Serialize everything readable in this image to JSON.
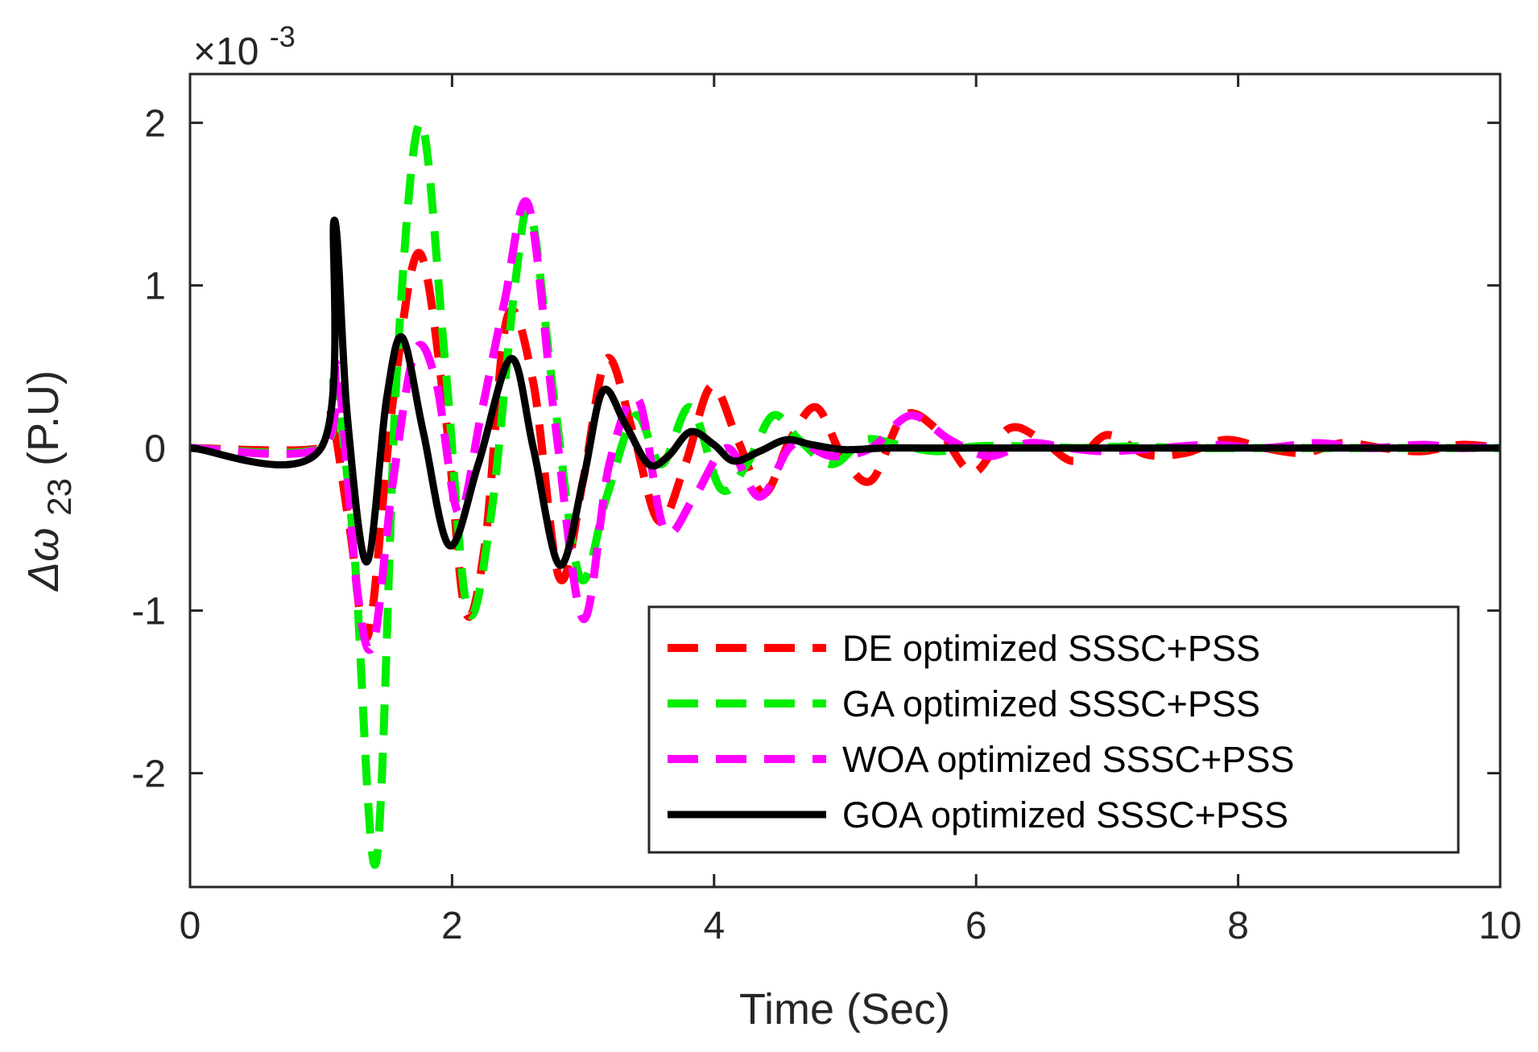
{
  "chart_data": {
    "type": "line",
    "xlabel": "Time (Sec)",
    "ylabel": {
      "main": "Δω",
      "subscript": "23",
      "unit": " (P.U)"
    },
    "y_exponent": {
      "base": "×10",
      "exponent": "-3"
    },
    "xlim": [
      0,
      10
    ],
    "ylim": [
      -2.7,
      2.3
    ],
    "xticks": [
      0,
      2,
      4,
      6,
      8,
      10
    ],
    "yticks": [
      -2,
      -1,
      0,
      1,
      2
    ],
    "grid": false,
    "legend_position": "bottom-right",
    "series": [
      {
        "name": "DE optimized SSSC+PSS",
        "color": "#ff0000",
        "style": "dashed",
        "x": [
          0,
          1.0,
          1.08,
          1.22,
          1.36,
          1.55,
          1.75,
          1.95,
          2.1,
          2.25,
          2.42,
          2.62,
          2.82,
          3.0,
          3.18,
          3.38,
          3.58,
          3.78,
          3.98,
          4.18,
          4.38,
          4.58,
          4.78,
          4.98,
          5.2,
          5.45,
          5.72,
          5.98,
          6.25,
          6.5,
          6.75,
          7.0,
          7.3,
          7.6,
          7.9,
          8.2,
          8.5,
          8.8,
          9.1,
          9.4,
          9.7,
          10.0
        ],
        "values": [
          0,
          0,
          0.2,
          -0.5,
          -1.15,
          0.3,
          1.2,
          0.2,
          -1.0,
          -0.6,
          0.8,
          0.4,
          -0.8,
          -0.2,
          0.55,
          0.1,
          -0.45,
          -0.1,
          0.38,
          0.05,
          -0.28,
          0.05,
          0.25,
          -0.05,
          -0.2,
          0.2,
          0.1,
          -0.15,
          0.12,
          0.05,
          -0.08,
          0.08,
          -0.04,
          -0.03,
          0.05,
          0.0,
          -0.03,
          0.03,
          0.0,
          -0.02,
          0.02,
          0.0
        ]
      },
      {
        "name": "GA optimized SSSC+PSS",
        "color": "#00ee00",
        "style": "dashed",
        "x": [
          0,
          1.0,
          1.1,
          1.25,
          1.42,
          1.58,
          1.76,
          1.95,
          2.12,
          2.3,
          2.48,
          2.6,
          2.78,
          2.98,
          3.18,
          3.4,
          3.6,
          3.82,
          4.05,
          4.25,
          4.45,
          4.65,
          4.9,
          5.15,
          5.4,
          5.7,
          6.0,
          6.4,
          6.8,
          7.2,
          7.6,
          8.0,
          8.5,
          9.0,
          9.5,
          10.0
        ],
        "values": [
          0,
          0,
          0.4,
          -0.6,
          -2.55,
          0.5,
          2.0,
          0.5,
          -1.0,
          -0.4,
          1.0,
          1.45,
          0.3,
          -0.8,
          -0.3,
          0.2,
          -0.1,
          0.25,
          -0.25,
          -0.1,
          0.2,
          0.05,
          -0.1,
          0.05,
          0.02,
          -0.02,
          0.01,
          0.01,
          0.0,
          0.01,
          0.0,
          0.0,
          0.0,
          0.0,
          0.0,
          0.0
        ]
      },
      {
        "name": "WOA optimized SSSC+PSS",
        "color": "#ff00ff",
        "style": "dashed",
        "x": [
          0,
          1.0,
          1.12,
          1.28,
          1.4,
          1.55,
          1.72,
          1.88,
          2.05,
          2.22,
          2.4,
          2.58,
          2.78,
          3.0,
          3.2,
          3.42,
          3.62,
          3.85,
          4.1,
          4.35,
          4.6,
          4.9,
          5.2,
          5.5,
          5.8,
          6.1,
          6.4,
          6.7,
          7.0,
          7.4,
          7.8,
          8.2,
          8.6,
          9.0,
          9.4,
          9.7,
          10.0
        ],
        "values": [
          0,
          0,
          0.5,
          -0.9,
          -1.2,
          -0.2,
          0.6,
          0.4,
          -0.4,
          0.2,
          0.9,
          1.5,
          0.2,
          -1.05,
          -0.1,
          0.3,
          -0.5,
          -0.3,
          0.0,
          -0.3,
          0.02,
          -0.05,
          0.0,
          0.2,
          0.05,
          -0.05,
          0.03,
          0.0,
          -0.02,
          0.0,
          0.02,
          0.0,
          0.03,
          0.0,
          0.02,
          0.0,
          0.01
        ]
      },
      {
        "name": "GOA optimized SSSC+PSS",
        "color": "#000000",
        "style": "solid",
        "x": [
          0,
          1.0,
          1.1,
          1.2,
          1.35,
          1.5,
          1.62,
          1.78,
          1.98,
          2.2,
          2.45,
          2.62,
          2.82,
          3.0,
          3.15,
          3.32,
          3.5,
          3.65,
          3.82,
          4.0,
          4.15,
          4.35,
          4.55,
          4.75,
          5.0,
          5.3,
          5.6,
          6.0,
          7.0,
          8.0,
          9.0,
          10.0
        ],
        "values": [
          0,
          0,
          1.4,
          0.2,
          -0.7,
          0.3,
          0.68,
          0.1,
          -0.6,
          -0.1,
          0.55,
          0.0,
          -0.72,
          -0.2,
          0.35,
          0.15,
          -0.1,
          -0.05,
          0.1,
          0.02,
          -0.08,
          -0.02,
          0.05,
          0.02,
          -0.01,
          0.0,
          0.0,
          0.0,
          0.0,
          0.0,
          0.0,
          0.0
        ]
      }
    ]
  }
}
